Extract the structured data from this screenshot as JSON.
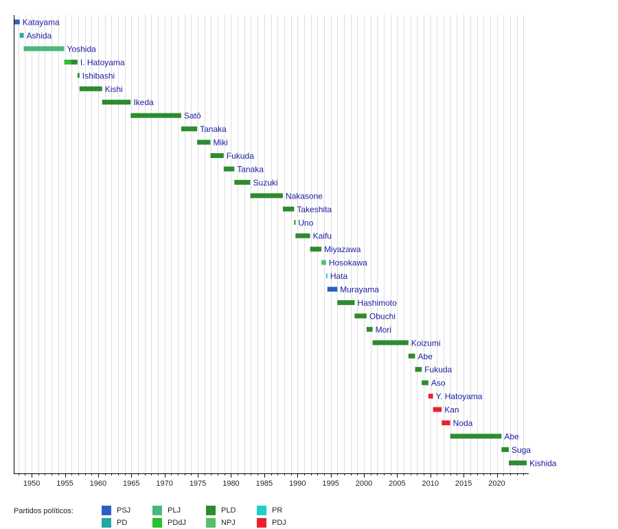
{
  "chart_data": {
    "type": "bar",
    "subtype": "timeline",
    "title": "",
    "xlabel": "",
    "ylabel": "",
    "xlim": [
      1947.3,
      2024.8
    ],
    "xticks": [
      1950,
      1955,
      1960,
      1965,
      1970,
      1975,
      1980,
      1985,
      1990,
      1995,
      2000,
      2005,
      2010,
      2015,
      2020
    ],
    "grid": true,
    "party_colors": {
      "PSJ": "#2c5fc0",
      "PD": "#22a6a6",
      "PLJ": "#4ab87a",
      "PDdJ": "#27c22c",
      "PLD": "#2e8b2e",
      "NPJ": "#55c06a",
      "PR": "#1ecfc8",
      "PDJ": "#e8232f"
    },
    "series": [
      {
        "name": "Katayama",
        "segments": [
          {
            "start": 1947.4,
            "end": 1948.2,
            "party": "PSJ"
          }
        ]
      },
      {
        "name": "Ashida",
        "segments": [
          {
            "start": 1948.2,
            "end": 1948.8,
            "party": "PD"
          }
        ]
      },
      {
        "name": "Yoshida",
        "segments": [
          {
            "start": 1948.8,
            "end": 1954.9,
            "party": "PLJ"
          }
        ]
      },
      {
        "name": "I. Hatoyama",
        "segments": [
          {
            "start": 1954.9,
            "end": 1955.9,
            "party": "PDdJ"
          },
          {
            "start": 1955.9,
            "end": 1956.9,
            "party": "PLD"
          }
        ]
      },
      {
        "name": "Ishibashi",
        "segments": [
          {
            "start": 1956.9,
            "end": 1957.2,
            "party": "PLD"
          }
        ]
      },
      {
        "name": "Kishi",
        "segments": [
          {
            "start": 1957.2,
            "end": 1960.6,
            "party": "PLD"
          }
        ]
      },
      {
        "name": "Ikeda",
        "segments": [
          {
            "start": 1960.6,
            "end": 1964.9,
            "party": "PLD"
          }
        ]
      },
      {
        "name": "Satō",
        "segments": [
          {
            "start": 1964.9,
            "end": 1972.5,
            "party": "PLD"
          }
        ]
      },
      {
        "name": "Tanaka",
        "segments": [
          {
            "start": 1972.5,
            "end": 1974.9,
            "party": "PLD"
          }
        ]
      },
      {
        "name": "Miki",
        "segments": [
          {
            "start": 1974.9,
            "end": 1976.9,
            "party": "PLD"
          }
        ]
      },
      {
        "name": "Fukuda",
        "segments": [
          {
            "start": 1976.9,
            "end": 1978.9,
            "party": "PLD"
          }
        ]
      },
      {
        "name": "Tanaka",
        "segments": [
          {
            "start": 1978.9,
            "end": 1980.5,
            "party": "PLD"
          }
        ]
      },
      {
        "name": "Suzuki",
        "segments": [
          {
            "start": 1980.5,
            "end": 1982.9,
            "party": "PLD"
          }
        ]
      },
      {
        "name": "Nakasone",
        "segments": [
          {
            "start": 1982.9,
            "end": 1987.8,
            "party": "PLD"
          }
        ]
      },
      {
        "name": "Takeshita",
        "segments": [
          {
            "start": 1987.8,
            "end": 1989.5,
            "party": "PLD"
          }
        ]
      },
      {
        "name": "Uno",
        "segments": [
          {
            "start": 1989.5,
            "end": 1989.7,
            "party": "PLD"
          }
        ]
      },
      {
        "name": "Kaifu",
        "segments": [
          {
            "start": 1989.7,
            "end": 1991.9,
            "party": "PLD"
          }
        ]
      },
      {
        "name": "Miyazawa",
        "segments": [
          {
            "start": 1991.9,
            "end": 1993.6,
            "party": "PLD"
          }
        ]
      },
      {
        "name": "Hosokawa",
        "segments": [
          {
            "start": 1993.6,
            "end": 1994.3,
            "party": "NPJ"
          }
        ]
      },
      {
        "name": "Hata",
        "segments": [
          {
            "start": 1994.3,
            "end": 1994.5,
            "party": "PR"
          }
        ]
      },
      {
        "name": "Murayama",
        "segments": [
          {
            "start": 1994.5,
            "end": 1996.0,
            "party": "PSJ"
          }
        ]
      },
      {
        "name": "Hashimoto",
        "segments": [
          {
            "start": 1996.0,
            "end": 1998.6,
            "party": "PLD"
          }
        ]
      },
      {
        "name": "Obuchi",
        "segments": [
          {
            "start": 1998.6,
            "end": 2000.4,
            "party": "PLD"
          }
        ]
      },
      {
        "name": "Mori",
        "segments": [
          {
            "start": 2000.4,
            "end": 2001.3,
            "party": "PLD"
          }
        ]
      },
      {
        "name": "Koizumi",
        "segments": [
          {
            "start": 2001.3,
            "end": 2006.7,
            "party": "PLD"
          }
        ]
      },
      {
        "name": "Abe",
        "segments": [
          {
            "start": 2006.7,
            "end": 2007.7,
            "party": "PLD"
          }
        ]
      },
      {
        "name": "Fukuda",
        "segments": [
          {
            "start": 2007.7,
            "end": 2008.7,
            "party": "PLD"
          }
        ]
      },
      {
        "name": "Aso",
        "segments": [
          {
            "start": 2008.7,
            "end": 2009.7,
            "party": "PLD"
          }
        ]
      },
      {
        "name": "Y. Hatoyama",
        "segments": [
          {
            "start": 2009.7,
            "end": 2010.4,
            "party": "PDJ"
          }
        ]
      },
      {
        "name": "Kan",
        "segments": [
          {
            "start": 2010.4,
            "end": 2011.7,
            "party": "PDJ"
          }
        ]
      },
      {
        "name": "Noda",
        "segments": [
          {
            "start": 2011.7,
            "end": 2012.98,
            "party": "PDJ"
          }
        ]
      },
      {
        "name": "Abe",
        "segments": [
          {
            "start": 2012.98,
            "end": 2020.7,
            "party": "PLD"
          }
        ]
      },
      {
        "name": "Suga",
        "segments": [
          {
            "start": 2020.7,
            "end": 2021.8,
            "party": "PLD"
          }
        ]
      },
      {
        "name": "Kishida",
        "segments": [
          {
            "start": 2021.8,
            "end": 2024.5,
            "party": "PLD"
          }
        ]
      }
    ]
  },
  "legend": {
    "title": "Partidos políticos:",
    "items": [
      {
        "label": "PSJ",
        "party": "PSJ"
      },
      {
        "label": "PD",
        "party": "PD"
      },
      {
        "label": "PLJ",
        "party": "PLJ"
      },
      {
        "label": "PDdJ",
        "party": "PDdJ"
      },
      {
        "label": "PLD",
        "party": "PLD"
      },
      {
        "label": "NPJ",
        "party": "NPJ"
      },
      {
        "label": "PR",
        "party": "PR"
      },
      {
        "label": "PDJ",
        "party": "PDJ"
      }
    ]
  },
  "styles": {
    "label_color": "#1a1aa0",
    "grid_color": "#dddddd",
    "axis_color": "#000000"
  }
}
